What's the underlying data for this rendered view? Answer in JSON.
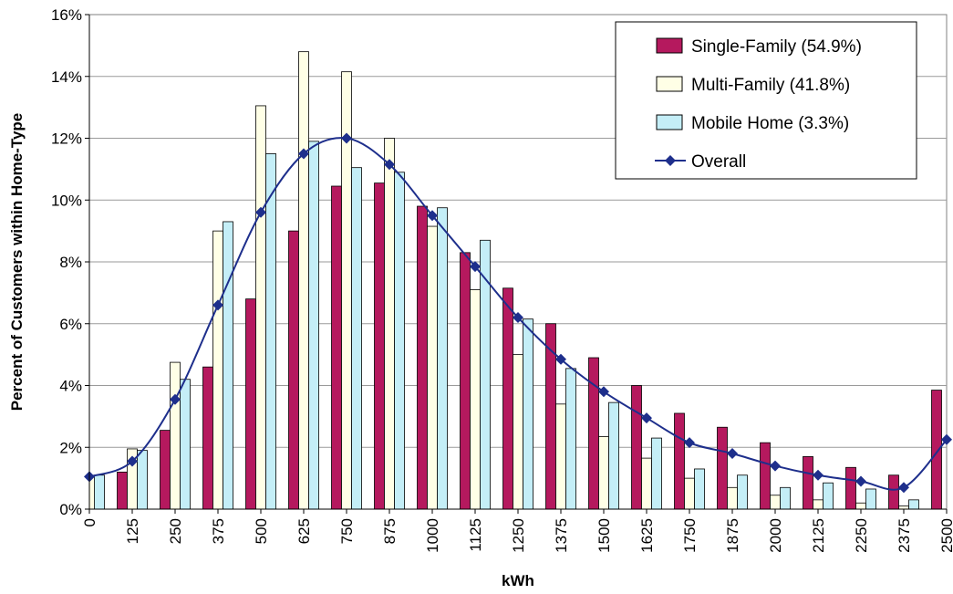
{
  "chart_data": {
    "type": "bar",
    "xlabel": "kWh",
    "ylabel": "Percent of Customers within Home-Type",
    "ylim": [
      0,
      16
    ],
    "y_ticks": [
      "0%",
      "2%",
      "4%",
      "6%",
      "8%",
      "10%",
      "12%",
      "14%",
      "16%"
    ],
    "categories": [
      "0",
      "125",
      "250",
      "375",
      "500",
      "625",
      "750",
      "875",
      "1000",
      "1125",
      "1250",
      "1375",
      "1500",
      "1625",
      "1750",
      "1875",
      "2000",
      "2125",
      "2250",
      "2375",
      "2500"
    ],
    "grid": true,
    "legend_position": "top-right",
    "series": [
      {
        "name": "Single-Family (54.9%)",
        "kind": "bar",
        "color": "#B5195E",
        "values": [
          0.0,
          1.2,
          2.55,
          4.6,
          6.8,
          9.0,
          10.45,
          10.55,
          9.8,
          8.3,
          7.15,
          6.0,
          4.9,
          4.0,
          3.1,
          2.65,
          2.15,
          1.7,
          1.35,
          1.1,
          3.85
        ]
      },
      {
        "name": "Multi-Family (41.8%)",
        "kind": "bar",
        "color": "#FFFFE6",
        "values": [
          1.05,
          1.95,
          4.75,
          9.0,
          13.05,
          14.8,
          14.15,
          12.0,
          9.15,
          7.1,
          5.0,
          3.4,
          2.35,
          1.65,
          1.0,
          0.7,
          0.45,
          0.3,
          0.2,
          0.1,
          0.0
        ]
      },
      {
        "name": "Mobile Home (3.3%)",
        "kind": "bar",
        "color": "#C4EEF7",
        "values": [
          1.1,
          1.9,
          4.2,
          9.3,
          11.5,
          11.9,
          11.05,
          10.9,
          9.75,
          8.7,
          6.15,
          4.55,
          3.45,
          2.3,
          1.3,
          1.1,
          0.7,
          0.85,
          0.65,
          0.3,
          0.0
        ]
      },
      {
        "name": "Overall",
        "kind": "line",
        "color": "#1E2F8C",
        "values": [
          1.05,
          1.55,
          3.55,
          6.6,
          9.6,
          11.5,
          12.0,
          11.15,
          9.5,
          7.85,
          6.2,
          4.85,
          3.8,
          2.95,
          2.15,
          1.8,
          1.4,
          1.1,
          0.9,
          0.7,
          2.25
        ]
      }
    ]
  }
}
